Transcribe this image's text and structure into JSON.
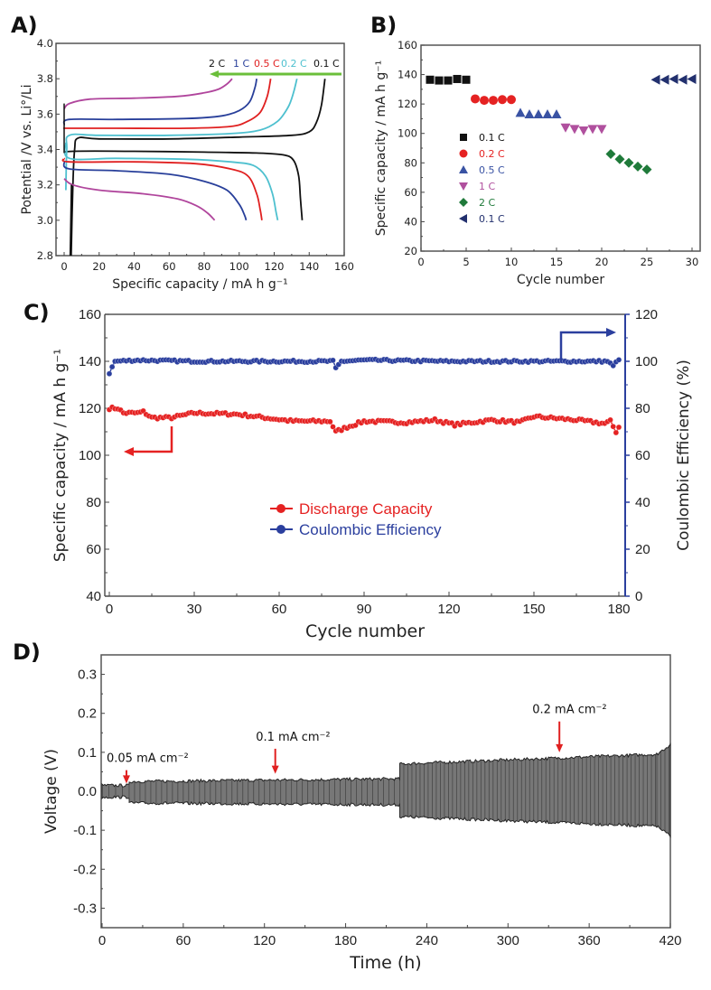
{
  "panels": {
    "A": "A)",
    "B": "B)",
    "C": "C)",
    "D": "D)"
  },
  "chart_data": [
    {
      "id": "A",
      "type": "line",
      "title": "",
      "xlabel": "Specific capacity / mA h g⁻¹",
      "ylabel": "Potential /V vs. Li°/Li",
      "xlim": [
        -5,
        160
      ],
      "ylim": [
        2.8,
        4.0
      ],
      "xticks": [
        "0",
        "20",
        "40",
        "60",
        "80",
        "100",
        "120",
        "140",
        "160"
      ],
      "yticks": [
        "2.8",
        "3.0",
        "3.2",
        "3.4",
        "3.6",
        "3.8",
        "4.0"
      ],
      "annotation": {
        "labels": [
          "2 C",
          "1 C",
          "0.5 C",
          "0.2 C",
          "0.1 C"
        ],
        "arrow_color": "#6bbf3a",
        "direction": "left"
      },
      "series": [
        {
          "name": "0.1 C",
          "color": "#111111",
          "charge": [
            [
              4,
              2.8
            ],
            [
              5,
              3.2
            ],
            [
              6,
              3.4
            ],
            [
              8,
              3.465
            ],
            [
              20,
              3.46
            ],
            [
              60,
              3.46
            ],
            [
              100,
              3.47
            ],
            [
              130,
              3.48
            ],
            [
              140,
              3.5
            ],
            [
              144,
              3.55
            ],
            [
              147,
              3.65
            ],
            [
              149,
              3.8
            ]
          ],
          "discharge": [
            [
              0,
              3.38
            ],
            [
              5,
              3.39
            ],
            [
              40,
              3.39
            ],
            [
              80,
              3.385
            ],
            [
              110,
              3.38
            ],
            [
              125,
              3.37
            ],
            [
              131,
              3.34
            ],
            [
              134,
              3.25
            ],
            [
              135,
              3.12
            ],
            [
              136,
              3.0
            ]
          ]
        },
        {
          "name": "0.2 C",
          "color": "#4ec0cf",
          "charge": [
            [
              1,
              3.17
            ],
            [
              1.5,
              3.4
            ],
            [
              3,
              3.48
            ],
            [
              20,
              3.48
            ],
            [
              60,
              3.48
            ],
            [
              95,
              3.49
            ],
            [
              112,
              3.51
            ],
            [
              122,
              3.56
            ],
            [
              128,
              3.64
            ],
            [
              131,
              3.72
            ],
            [
              133,
              3.8
            ]
          ],
          "discharge": [
            [
              1,
              3.44
            ],
            [
              3,
              3.35
            ],
            [
              30,
              3.35
            ],
            [
              70,
              3.345
            ],
            [
              95,
              3.33
            ],
            [
              108,
              3.31
            ],
            [
              115,
              3.25
            ],
            [
              119,
              3.15
            ],
            [
              121,
              3.05
            ],
            [
              122,
              3.0
            ]
          ]
        },
        {
          "name": "0.5 C",
          "color": "#e02020",
          "charge": [
            [
              0,
              3.52
            ],
            [
              3,
              3.52
            ],
            [
              30,
              3.52
            ],
            [
              70,
              3.52
            ],
            [
              95,
              3.53
            ],
            [
              105,
              3.56
            ],
            [
              112,
              3.61
            ],
            [
              116,
              3.7
            ],
            [
              118,
              3.8
            ]
          ],
          "discharge": [
            [
              0,
              3.35
            ],
            [
              3,
              3.33
            ],
            [
              40,
              3.33
            ],
            [
              75,
              3.32
            ],
            [
              95,
              3.29
            ],
            [
              105,
              3.25
            ],
            [
              110,
              3.15
            ],
            [
              112,
              3.06
            ],
            [
              113,
              3.0
            ]
          ]
        },
        {
          "name": "1 C",
          "color": "#283f9a",
          "charge": [
            [
              0,
              3.54
            ],
            [
              3,
              3.57
            ],
            [
              30,
              3.57
            ],
            [
              70,
              3.575
            ],
            [
              90,
              3.59
            ],
            [
              100,
              3.62
            ],
            [
              106,
              3.67
            ],
            [
              109,
              3.75
            ],
            [
              110,
              3.8
            ]
          ],
          "discharge": [
            [
              0,
              3.33
            ],
            [
              3,
              3.29
            ],
            [
              30,
              3.28
            ],
            [
              60,
              3.26
            ],
            [
              80,
              3.22
            ],
            [
              93,
              3.17
            ],
            [
              100,
              3.09
            ],
            [
              103,
              3.03
            ],
            [
              104,
              3.0
            ]
          ]
        },
        {
          "name": "2 C",
          "color": "#b0459c",
          "charge": [
            [
              0,
              3.63
            ],
            [
              3,
              3.66
            ],
            [
              15,
              3.685
            ],
            [
              40,
              3.69
            ],
            [
              65,
              3.7
            ],
            [
              80,
              3.72
            ],
            [
              88,
              3.74
            ],
            [
              93,
              3.77
            ],
            [
              96,
              3.8
            ]
          ],
          "discharge": [
            [
              0,
              3.235
            ],
            [
              5,
              3.2
            ],
            [
              20,
              3.17
            ],
            [
              45,
              3.15
            ],
            [
              65,
              3.12
            ],
            [
              76,
              3.08
            ],
            [
              82,
              3.04
            ],
            [
              86,
              3.0
            ]
          ]
        }
      ]
    },
    {
      "id": "B",
      "type": "scatter",
      "xlabel": "Cycle number",
      "ylabel": "Specific capacity / mA h g⁻¹",
      "xlim": [
        0,
        31
      ],
      "ylim": [
        20,
        160
      ],
      "xticks": [
        "0",
        "5",
        "10",
        "15",
        "20",
        "25",
        "30"
      ],
      "yticks": [
        "20",
        "40",
        "60",
        "80",
        "100",
        "120",
        "140",
        "160"
      ],
      "legend_position": "left-center",
      "series": [
        {
          "name": "0.1 C",
          "marker": "square",
          "color": "#111111",
          "x": [
            1,
            2,
            3,
            4,
            5
          ],
          "y": [
            136.5,
            136,
            136,
            137,
            136.5
          ]
        },
        {
          "name": "0.2 C",
          "marker": "circle",
          "color": "#e52222",
          "x": [
            6,
            7,
            8,
            9,
            10
          ],
          "y": [
            123.5,
            122.5,
            122.5,
            123,
            123
          ]
        },
        {
          "name": "0.5 C",
          "marker": "triangle-up",
          "color": "#3952a3",
          "x": [
            11,
            12,
            13,
            14,
            15
          ],
          "y": [
            114,
            113,
            113,
            113,
            113
          ]
        },
        {
          "name": "1 C",
          "marker": "triangle-down",
          "color": "#b0509e",
          "x": [
            16,
            17,
            18,
            19,
            20
          ],
          "y": [
            104,
            103,
            102,
            103,
            103
          ]
        },
        {
          "name": "2 C",
          "marker": "diamond",
          "color": "#1f7a3a",
          "x": [
            21,
            22,
            23,
            24,
            25
          ],
          "y": [
            86,
            82.5,
            80,
            77.5,
            75.5
          ]
        },
        {
          "name": "0.1 C",
          "marker": "triangle-left",
          "color": "#22306e",
          "x": [
            26,
            27,
            28,
            29,
            30
          ],
          "y": [
            136.5,
            136.5,
            137,
            136.5,
            137
          ]
        }
      ]
    },
    {
      "id": "C",
      "type": "line",
      "xlabel": "Cycle number",
      "ylabel": "Specific capacity / mA h g⁻¹",
      "y2label": "Coulombic Efficiency (%)",
      "xlim": [
        -1,
        182
      ],
      "ylim": [
        40,
        160
      ],
      "y2lim": [
        0,
        120
      ],
      "xticks": [
        "0",
        "30",
        "60",
        "90",
        "120",
        "150",
        "180"
      ],
      "yticks": [
        "40",
        "60",
        "80",
        "100",
        "120",
        "140",
        "160"
      ],
      "y2ticks": [
        "0",
        "20",
        "40",
        "60",
        "80",
        "100",
        "120"
      ],
      "legend_position": "center",
      "series": [
        {
          "name": "Discharge Capacity",
          "axis": "left",
          "color": "#e52222",
          "keypoints": [
            [
              0,
              120
            ],
            [
              3,
              120
            ],
            [
              5,
              118
            ],
            [
              10,
              118
            ],
            [
              12,
              118.5
            ],
            [
              15,
              116
            ],
            [
              22,
              116
            ],
            [
              30,
              118
            ],
            [
              45,
              117.5
            ],
            [
              55,
              116
            ],
            [
              65,
              114.5
            ],
            [
              78,
              114.5
            ],
            [
              80,
              110
            ],
            [
              84,
              112
            ],
            [
              90,
              114.5
            ],
            [
              105,
              114
            ],
            [
              115,
              115
            ],
            [
              122,
              113
            ],
            [
              135,
              115
            ],
            [
              145,
              114
            ],
            [
              150,
              116.5
            ],
            [
              165,
              115
            ],
            [
              175,
              113.5
            ],
            [
              177,
              114.5
            ],
            [
              179,
              110
            ],
            [
              180,
              112
            ]
          ]
        },
        {
          "name": "Coulombic Efficiency",
          "axis": "right",
          "color": "#2b3f9e",
          "keypoints": [
            [
              0,
              95
            ],
            [
              2,
              100
            ],
            [
              10,
              100.5
            ],
            [
              30,
              100
            ],
            [
              60,
              100
            ],
            [
              79,
              100
            ],
            [
              80,
              97
            ],
            [
              82,
              100
            ],
            [
              90,
              100.5
            ],
            [
              120,
              100
            ],
            [
              150,
              100
            ],
            [
              176,
              100
            ],
            [
              178,
              98
            ],
            [
              180,
              101
            ]
          ]
        }
      ],
      "arrows": [
        {
          "target": "left",
          "color": "#e52222"
        },
        {
          "target": "right",
          "color": "#2b3f9e"
        }
      ]
    },
    {
      "id": "D",
      "type": "area",
      "xlabel": "Time (h)",
      "ylabel": "Voltage (V)",
      "xlim": [
        0,
        420
      ],
      "ylim": [
        -0.35,
        0.35
      ],
      "xticks": [
        "0",
        "60",
        "120",
        "180",
        "240",
        "300",
        "360",
        "420"
      ],
      "yticks": [
        "0.3",
        "0.2",
        "0.1",
        "0.0",
        "-0.1",
        "-0.2",
        "-0.3"
      ],
      "fill_color": "#777777",
      "segments": [
        {
          "x_start": 0,
          "x_end": 20,
          "v_max": 0.015,
          "v_min": -0.015
        },
        {
          "x_start": 20,
          "x_end": 220,
          "v_max_start": 0.025,
          "v_max_end": 0.032,
          "v_min_start": -0.03,
          "v_min_end": -0.035
        },
        {
          "x_start": 220,
          "x_end": 410,
          "v_max_start": 0.07,
          "v_max_end": 0.095,
          "v_min_start": -0.065,
          "v_min_end": -0.09
        },
        {
          "x_start": 410,
          "x_end": 420,
          "v_max_start": 0.095,
          "v_max_end": 0.12,
          "v_min_start": -0.09,
          "v_min_end": -0.115
        }
      ],
      "annotations": [
        {
          "text": "0.05 mA cm⁻²",
          "x": 18,
          "arrow_tip_v": 0.02,
          "color": "#e02020"
        },
        {
          "text": "0.1 mA cm⁻²",
          "x": 128,
          "arrow_tip_v": 0.045,
          "color": "#e02020"
        },
        {
          "text": "0.2 mA cm⁻²",
          "x": 338,
          "arrow_tip_v": 0.1,
          "color": "#e02020"
        }
      ]
    }
  ]
}
